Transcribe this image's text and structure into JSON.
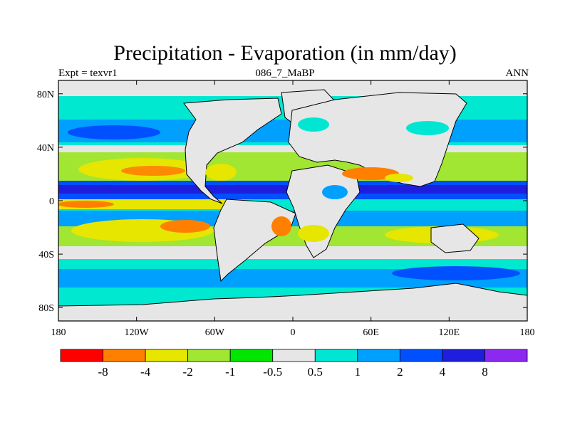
{
  "title": "Precipitation - Evaporation (in mm/day)",
  "subtitle_left": "Expt = texvr1",
  "subtitle_center": "086_7_MaBP",
  "subtitle_right": "ANN",
  "map": {
    "ocean_color": "#00e8d0",
    "land_color": "#e6e6e6",
    "lat_ticks": [
      {
        "label": "80N",
        "lat": 80
      },
      {
        "label": "40N",
        "lat": 40
      },
      {
        "label": "0",
        "lat": 0
      },
      {
        "label": "40S",
        "lat": -40
      },
      {
        "label": "80S",
        "lat": -80
      }
    ],
    "lon_ticks": [
      {
        "label": "180",
        "lon": -180
      },
      {
        "label": "120W",
        "lon": -120
      },
      {
        "label": "60W",
        "lon": -60
      },
      {
        "label": "0",
        "lon": 0
      },
      {
        "label": "60E",
        "lon": 60
      },
      {
        "label": "120E",
        "lon": 120
      },
      {
        "label": "180",
        "lon": 180
      }
    ]
  },
  "colorbar": {
    "colors": [
      "#ff0000",
      "#ff8000",
      "#e6e600",
      "#a0e632",
      "#00e600",
      "#e6e6e6",
      "#00e6d2",
      "#00a0ff",
      "#0050ff",
      "#1e1edc",
      "#8c28f0"
    ],
    "labels": [
      "-8",
      "-4",
      "-2",
      "-1",
      "-0.5",
      "0.5",
      "1",
      "2",
      "4",
      "8"
    ]
  }
}
